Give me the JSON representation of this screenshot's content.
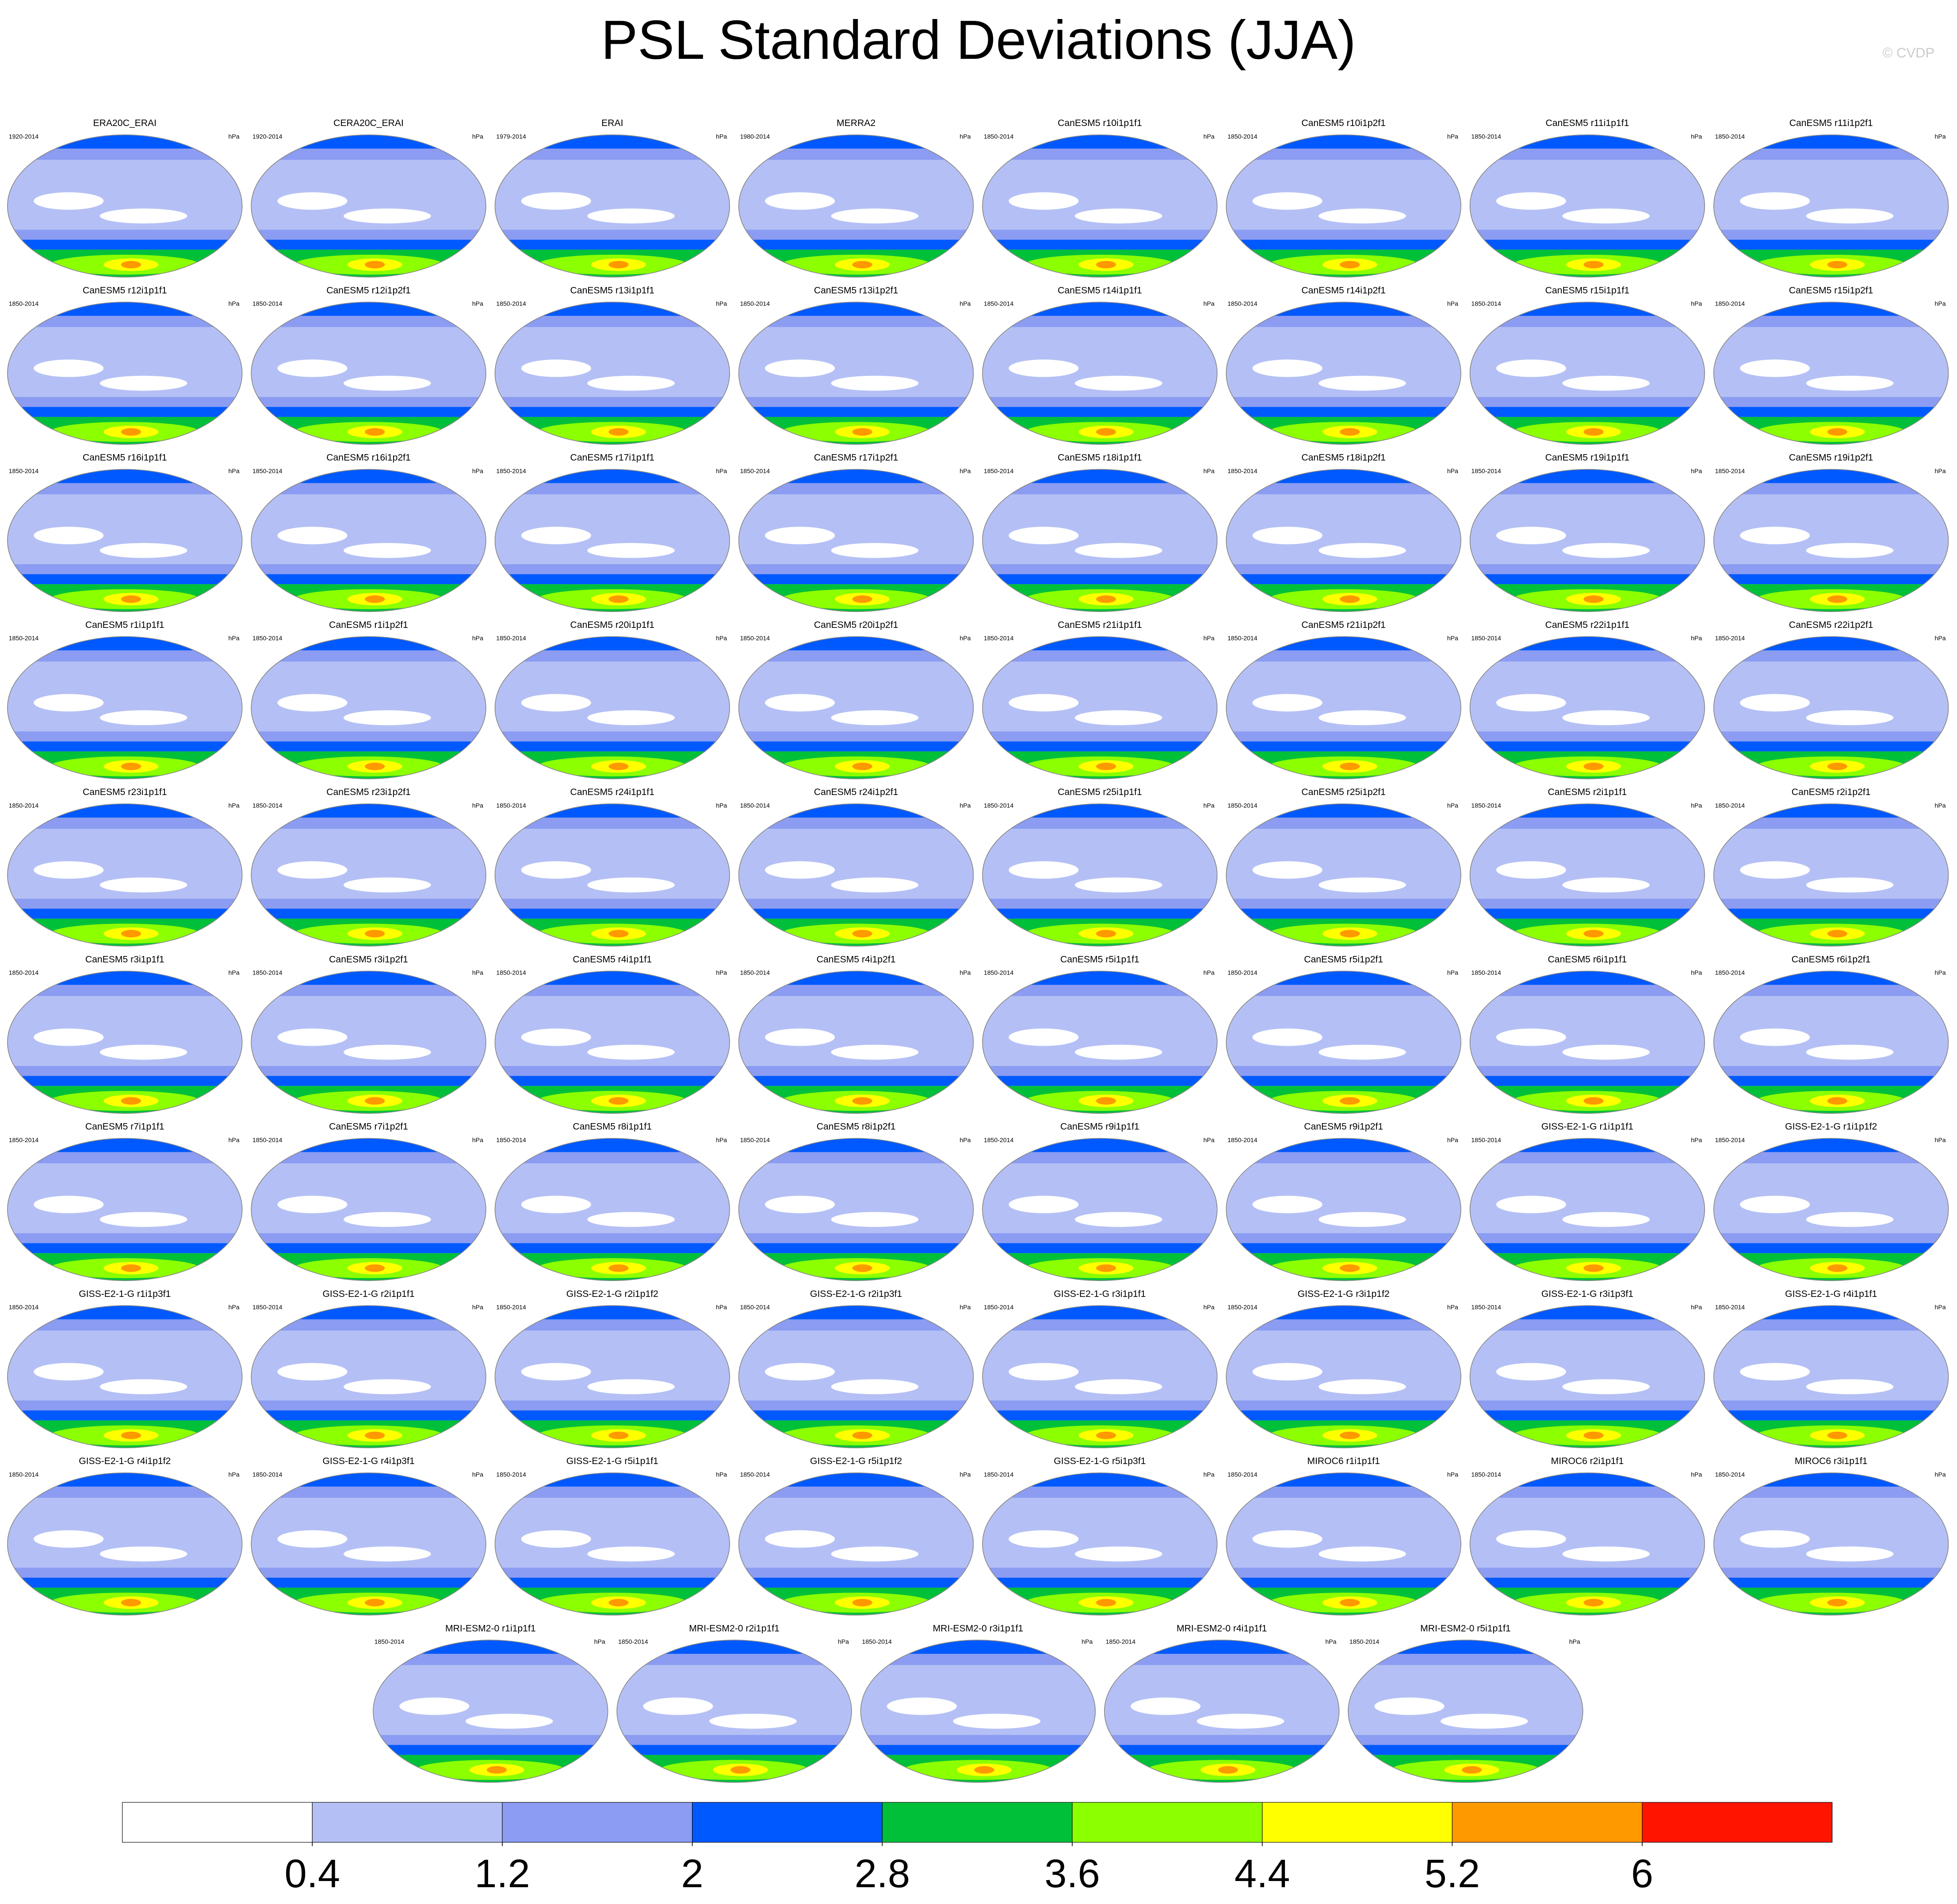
{
  "title": "PSL Standard Deviations (JJA)",
  "credit": "© CVDP",
  "panels": [
    {
      "title": "ERA20C_ERAI",
      "period": "1920-2014",
      "units": "hPa"
    },
    {
      "title": "CERA20C_ERAI",
      "period": "1920-2014",
      "units": "hPa"
    },
    {
      "title": "ERAI",
      "period": "1979-2014",
      "units": "hPa"
    },
    {
      "title": "MERRA2",
      "period": "1980-2014",
      "units": "hPa"
    },
    {
      "title": "CanESM5 r10i1p1f1",
      "period": "1850-2014",
      "units": "hPa"
    },
    {
      "title": "CanESM5 r10i1p2f1",
      "period": "1850-2014",
      "units": "hPa"
    },
    {
      "title": "CanESM5 r11i1p1f1",
      "period": "1850-2014",
      "units": "hPa"
    },
    {
      "title": "CanESM5 r11i1p2f1",
      "period": "1850-2014",
      "units": "hPa"
    },
    {
      "title": "CanESM5 r12i1p1f1",
      "period": "1850-2014",
      "units": "hPa"
    },
    {
      "title": "CanESM5 r12i1p2f1",
      "period": "1850-2014",
      "units": "hPa"
    },
    {
      "title": "CanESM5 r13i1p1f1",
      "period": "1850-2014",
      "units": "hPa"
    },
    {
      "title": "CanESM5 r13i1p2f1",
      "period": "1850-2014",
      "units": "hPa"
    },
    {
      "title": "CanESM5 r14i1p1f1",
      "period": "1850-2014",
      "units": "hPa"
    },
    {
      "title": "CanESM5 r14i1p2f1",
      "period": "1850-2014",
      "units": "hPa"
    },
    {
      "title": "CanESM5 r15i1p1f1",
      "period": "1850-2014",
      "units": "hPa"
    },
    {
      "title": "CanESM5 r15i1p2f1",
      "period": "1850-2014",
      "units": "hPa"
    },
    {
      "title": "CanESM5 r16i1p1f1",
      "period": "1850-2014",
      "units": "hPa"
    },
    {
      "title": "CanESM5 r16i1p2f1",
      "period": "1850-2014",
      "units": "hPa"
    },
    {
      "title": "CanESM5 r17i1p1f1",
      "period": "1850-2014",
      "units": "hPa"
    },
    {
      "title": "CanESM5 r17i1p2f1",
      "period": "1850-2014",
      "units": "hPa"
    },
    {
      "title": "CanESM5 r18i1p1f1",
      "period": "1850-2014",
      "units": "hPa"
    },
    {
      "title": "CanESM5 r18i1p2f1",
      "period": "1850-2014",
      "units": "hPa"
    },
    {
      "title": "CanESM5 r19i1p1f1",
      "period": "1850-2014",
      "units": "hPa"
    },
    {
      "title": "CanESM5 r19i1p2f1",
      "period": "1850-2014",
      "units": "hPa"
    },
    {
      "title": "CanESM5 r1i1p1f1",
      "period": "1850-2014",
      "units": "hPa"
    },
    {
      "title": "CanESM5 r1i1p2f1",
      "period": "1850-2014",
      "units": "hPa"
    },
    {
      "title": "CanESM5 r20i1p1f1",
      "period": "1850-2014",
      "units": "hPa"
    },
    {
      "title": "CanESM5 r20i1p2f1",
      "period": "1850-2014",
      "units": "hPa"
    },
    {
      "title": "CanESM5 r21i1p1f1",
      "period": "1850-2014",
      "units": "hPa"
    },
    {
      "title": "CanESM5 r21i1p2f1",
      "period": "1850-2014",
      "units": "hPa"
    },
    {
      "title": "CanESM5 r22i1p1f1",
      "period": "1850-2014",
      "units": "hPa"
    },
    {
      "title": "CanESM5 r22i1p2f1",
      "period": "1850-2014",
      "units": "hPa"
    },
    {
      "title": "CanESM5 r23i1p1f1",
      "period": "1850-2014",
      "units": "hPa"
    },
    {
      "title": "CanESM5 r23i1p2f1",
      "period": "1850-2014",
      "units": "hPa"
    },
    {
      "title": "CanESM5 r24i1p1f1",
      "period": "1850-2014",
      "units": "hPa"
    },
    {
      "title": "CanESM5 r24i1p2f1",
      "period": "1850-2014",
      "units": "hPa"
    },
    {
      "title": "CanESM5 r25i1p1f1",
      "period": "1850-2014",
      "units": "hPa"
    },
    {
      "title": "CanESM5 r25i1p2f1",
      "period": "1850-2014",
      "units": "hPa"
    },
    {
      "title": "CanESM5 r2i1p1f1",
      "period": "1850-2014",
      "units": "hPa"
    },
    {
      "title": "CanESM5 r2i1p2f1",
      "period": "1850-2014",
      "units": "hPa"
    },
    {
      "title": "CanESM5 r3i1p1f1",
      "period": "1850-2014",
      "units": "hPa"
    },
    {
      "title": "CanESM5 r3i1p2f1",
      "period": "1850-2014",
      "units": "hPa"
    },
    {
      "title": "CanESM5 r4i1p1f1",
      "period": "1850-2014",
      "units": "hPa"
    },
    {
      "title": "CanESM5 r4i1p2f1",
      "period": "1850-2014",
      "units": "hPa"
    },
    {
      "title": "CanESM5 r5i1p1f1",
      "period": "1850-2014",
      "units": "hPa"
    },
    {
      "title": "CanESM5 r5i1p2f1",
      "period": "1850-2014",
      "units": "hPa"
    },
    {
      "title": "CanESM5 r6i1p1f1",
      "period": "1850-2014",
      "units": "hPa"
    },
    {
      "title": "CanESM5 r6i1p2f1",
      "period": "1850-2014",
      "units": "hPa"
    },
    {
      "title": "CanESM5 r7i1p1f1",
      "period": "1850-2014",
      "units": "hPa"
    },
    {
      "title": "CanESM5 r7i1p2f1",
      "period": "1850-2014",
      "units": "hPa"
    },
    {
      "title": "CanESM5 r8i1p1f1",
      "period": "1850-2014",
      "units": "hPa"
    },
    {
      "title": "CanESM5 r8i1p2f1",
      "period": "1850-2014",
      "units": "hPa"
    },
    {
      "title": "CanESM5 r9i1p1f1",
      "period": "1850-2014",
      "units": "hPa"
    },
    {
      "title": "CanESM5 r9i1p2f1",
      "period": "1850-2014",
      "units": "hPa"
    },
    {
      "title": "GISS-E2-1-G r1i1p1f1",
      "period": "1850-2014",
      "units": "hPa"
    },
    {
      "title": "GISS-E2-1-G r1i1p1f2",
      "period": "1850-2014",
      "units": "hPa"
    },
    {
      "title": "GISS-E2-1-G r1i1p3f1",
      "period": "1850-2014",
      "units": "hPa"
    },
    {
      "title": "GISS-E2-1-G r2i1p1f1",
      "period": "1850-2014",
      "units": "hPa"
    },
    {
      "title": "GISS-E2-1-G r2i1p1f2",
      "period": "1850-2014",
      "units": "hPa"
    },
    {
      "title": "GISS-E2-1-G r2i1p3f1",
      "period": "1850-2014",
      "units": "hPa"
    },
    {
      "title": "GISS-E2-1-G r3i1p1f1",
      "period": "1850-2014",
      "units": "hPa"
    },
    {
      "title": "GISS-E2-1-G r3i1p1f2",
      "period": "1850-2014",
      "units": "hPa"
    },
    {
      "title": "GISS-E2-1-G r3i1p3f1",
      "period": "1850-2014",
      "units": "hPa"
    },
    {
      "title": "GISS-E2-1-G r4i1p1f1",
      "period": "1850-2014",
      "units": "hPa"
    },
    {
      "title": "GISS-E2-1-G r4i1p1f2",
      "period": "1850-2014",
      "units": "hPa"
    },
    {
      "title": "GISS-E2-1-G r4i1p3f1",
      "period": "1850-2014",
      "units": "hPa"
    },
    {
      "title": "GISS-E2-1-G r5i1p1f1",
      "period": "1850-2014",
      "units": "hPa"
    },
    {
      "title": "GISS-E2-1-G r5i1p1f2",
      "period": "1850-2014",
      "units": "hPa"
    },
    {
      "title": "GISS-E2-1-G r5i1p3f1",
      "period": "1850-2014",
      "units": "hPa"
    },
    {
      "title": "MIROC6 r1i1p1f1",
      "period": "1850-2014",
      "units": "hPa"
    },
    {
      "title": "MIROC6 r2i1p1f1",
      "period": "1850-2014",
      "units": "hPa"
    },
    {
      "title": "MIROC6 r3i1p1f1",
      "period": "1850-2014",
      "units": "hPa"
    },
    {
      "title": "MRI-ESM2-0 r1i1p1f1",
      "period": "1850-2014",
      "units": "hPa"
    },
    {
      "title": "MRI-ESM2-0 r2i1p1f1",
      "period": "1850-2014",
      "units": "hPa"
    },
    {
      "title": "MRI-ESM2-0 r3i1p1f1",
      "period": "1850-2014",
      "units": "hPa"
    },
    {
      "title": "MRI-ESM2-0 r4i1p1f1",
      "period": "1850-2014",
      "units": "hPa"
    },
    {
      "title": "MRI-ESM2-0 r5i1p1f1",
      "period": "1850-2014",
      "units": "hPa"
    }
  ],
  "colorbar": {
    "colors": [
      "#ffffff",
      "#b4c0f5",
      "#8b9cf2",
      "#0059ff",
      "#00c03a",
      "#8cff00",
      "#ffff00",
      "#ff9900",
      "#ff1400"
    ],
    "ticks": [
      0.4,
      1.2,
      2,
      2.8,
      3.6,
      4.4,
      5.2,
      6
    ]
  }
}
